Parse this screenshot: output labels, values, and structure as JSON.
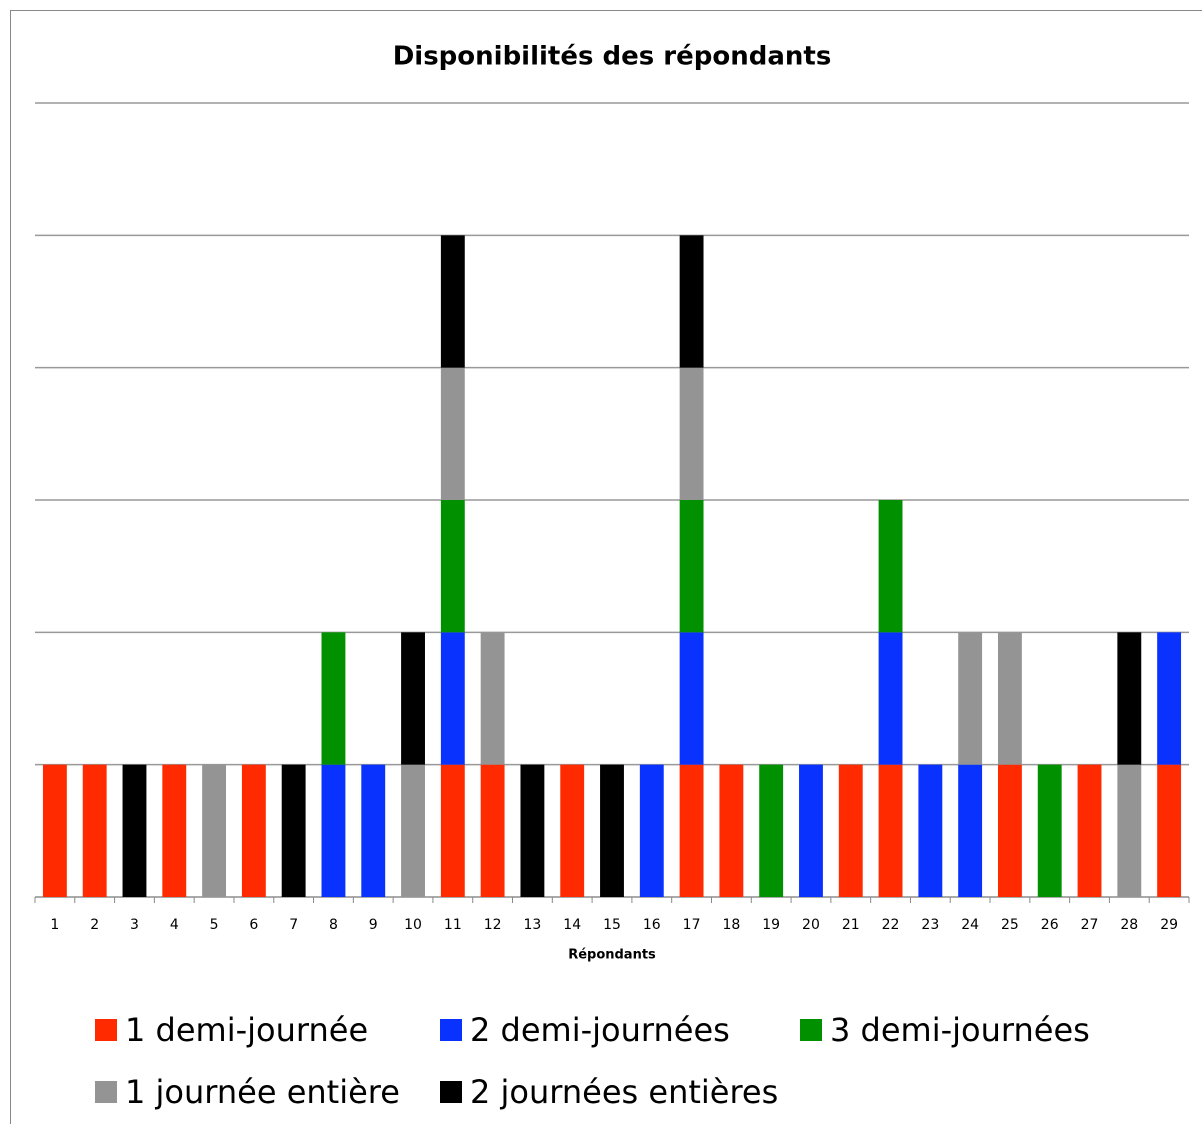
{
  "chart_data": {
    "type": "bar",
    "stacked": true,
    "title": "Disponibilités des répondants",
    "x_label": "Répondants",
    "categories": [
      "1",
      "2",
      "3",
      "4",
      "5",
      "6",
      "7",
      "8",
      "9",
      "10",
      "11",
      "12",
      "13",
      "14",
      "15",
      "16",
      "17",
      "18",
      "19",
      "20",
      "21",
      "22",
      "23",
      "24",
      "25",
      "26",
      "27",
      "28",
      "29"
    ],
    "series": [
      {
        "name": "1 demi-journée",
        "color": "#ff2a00",
        "values": [
          1,
          1,
          0,
          1,
          0,
          1,
          0,
          0,
          0,
          0,
          1,
          1,
          0,
          1,
          0,
          0,
          1,
          1,
          0,
          0,
          1,
          1,
          0,
          0,
          1,
          0,
          1,
          0,
          1
        ]
      },
      {
        "name": "2 demi-journées",
        "color": "#0a32ff",
        "values": [
          0,
          0,
          0,
          0,
          0,
          0,
          0,
          1,
          1,
          0,
          1,
          0,
          0,
          0,
          0,
          1,
          1,
          0,
          0,
          1,
          0,
          1,
          1,
          1,
          0,
          0,
          0,
          0,
          1
        ]
      },
      {
        "name": "3 demi-journées",
        "color": "#009000",
        "values": [
          0,
          0,
          0,
          0,
          0,
          0,
          0,
          1,
          0,
          0,
          1,
          0,
          0,
          0,
          0,
          0,
          1,
          0,
          1,
          0,
          0,
          1,
          0,
          0,
          0,
          1,
          0,
          0,
          0
        ]
      },
      {
        "name": "1 journée entière",
        "color": "#949494",
        "values": [
          0,
          0,
          0,
          0,
          1,
          0,
          0,
          0,
          0,
          1,
          1,
          1,
          0,
          0,
          0,
          0,
          1,
          0,
          0,
          0,
          0,
          0,
          0,
          1,
          1,
          0,
          0,
          1,
          0
        ]
      },
      {
        "name": "2 journées entières",
        "color": "#000000",
        "values": [
          0,
          0,
          1,
          0,
          0,
          0,
          1,
          0,
          0,
          1,
          1,
          0,
          1,
          0,
          1,
          0,
          1,
          0,
          0,
          0,
          0,
          0,
          0,
          0,
          0,
          0,
          0,
          1,
          0
        ]
      }
    ],
    "ylim": [
      0,
      6
    ],
    "yticks": [
      0,
      1,
      2,
      3,
      4,
      5,
      6
    ],
    "grid": true,
    "legend": "bottom"
  }
}
